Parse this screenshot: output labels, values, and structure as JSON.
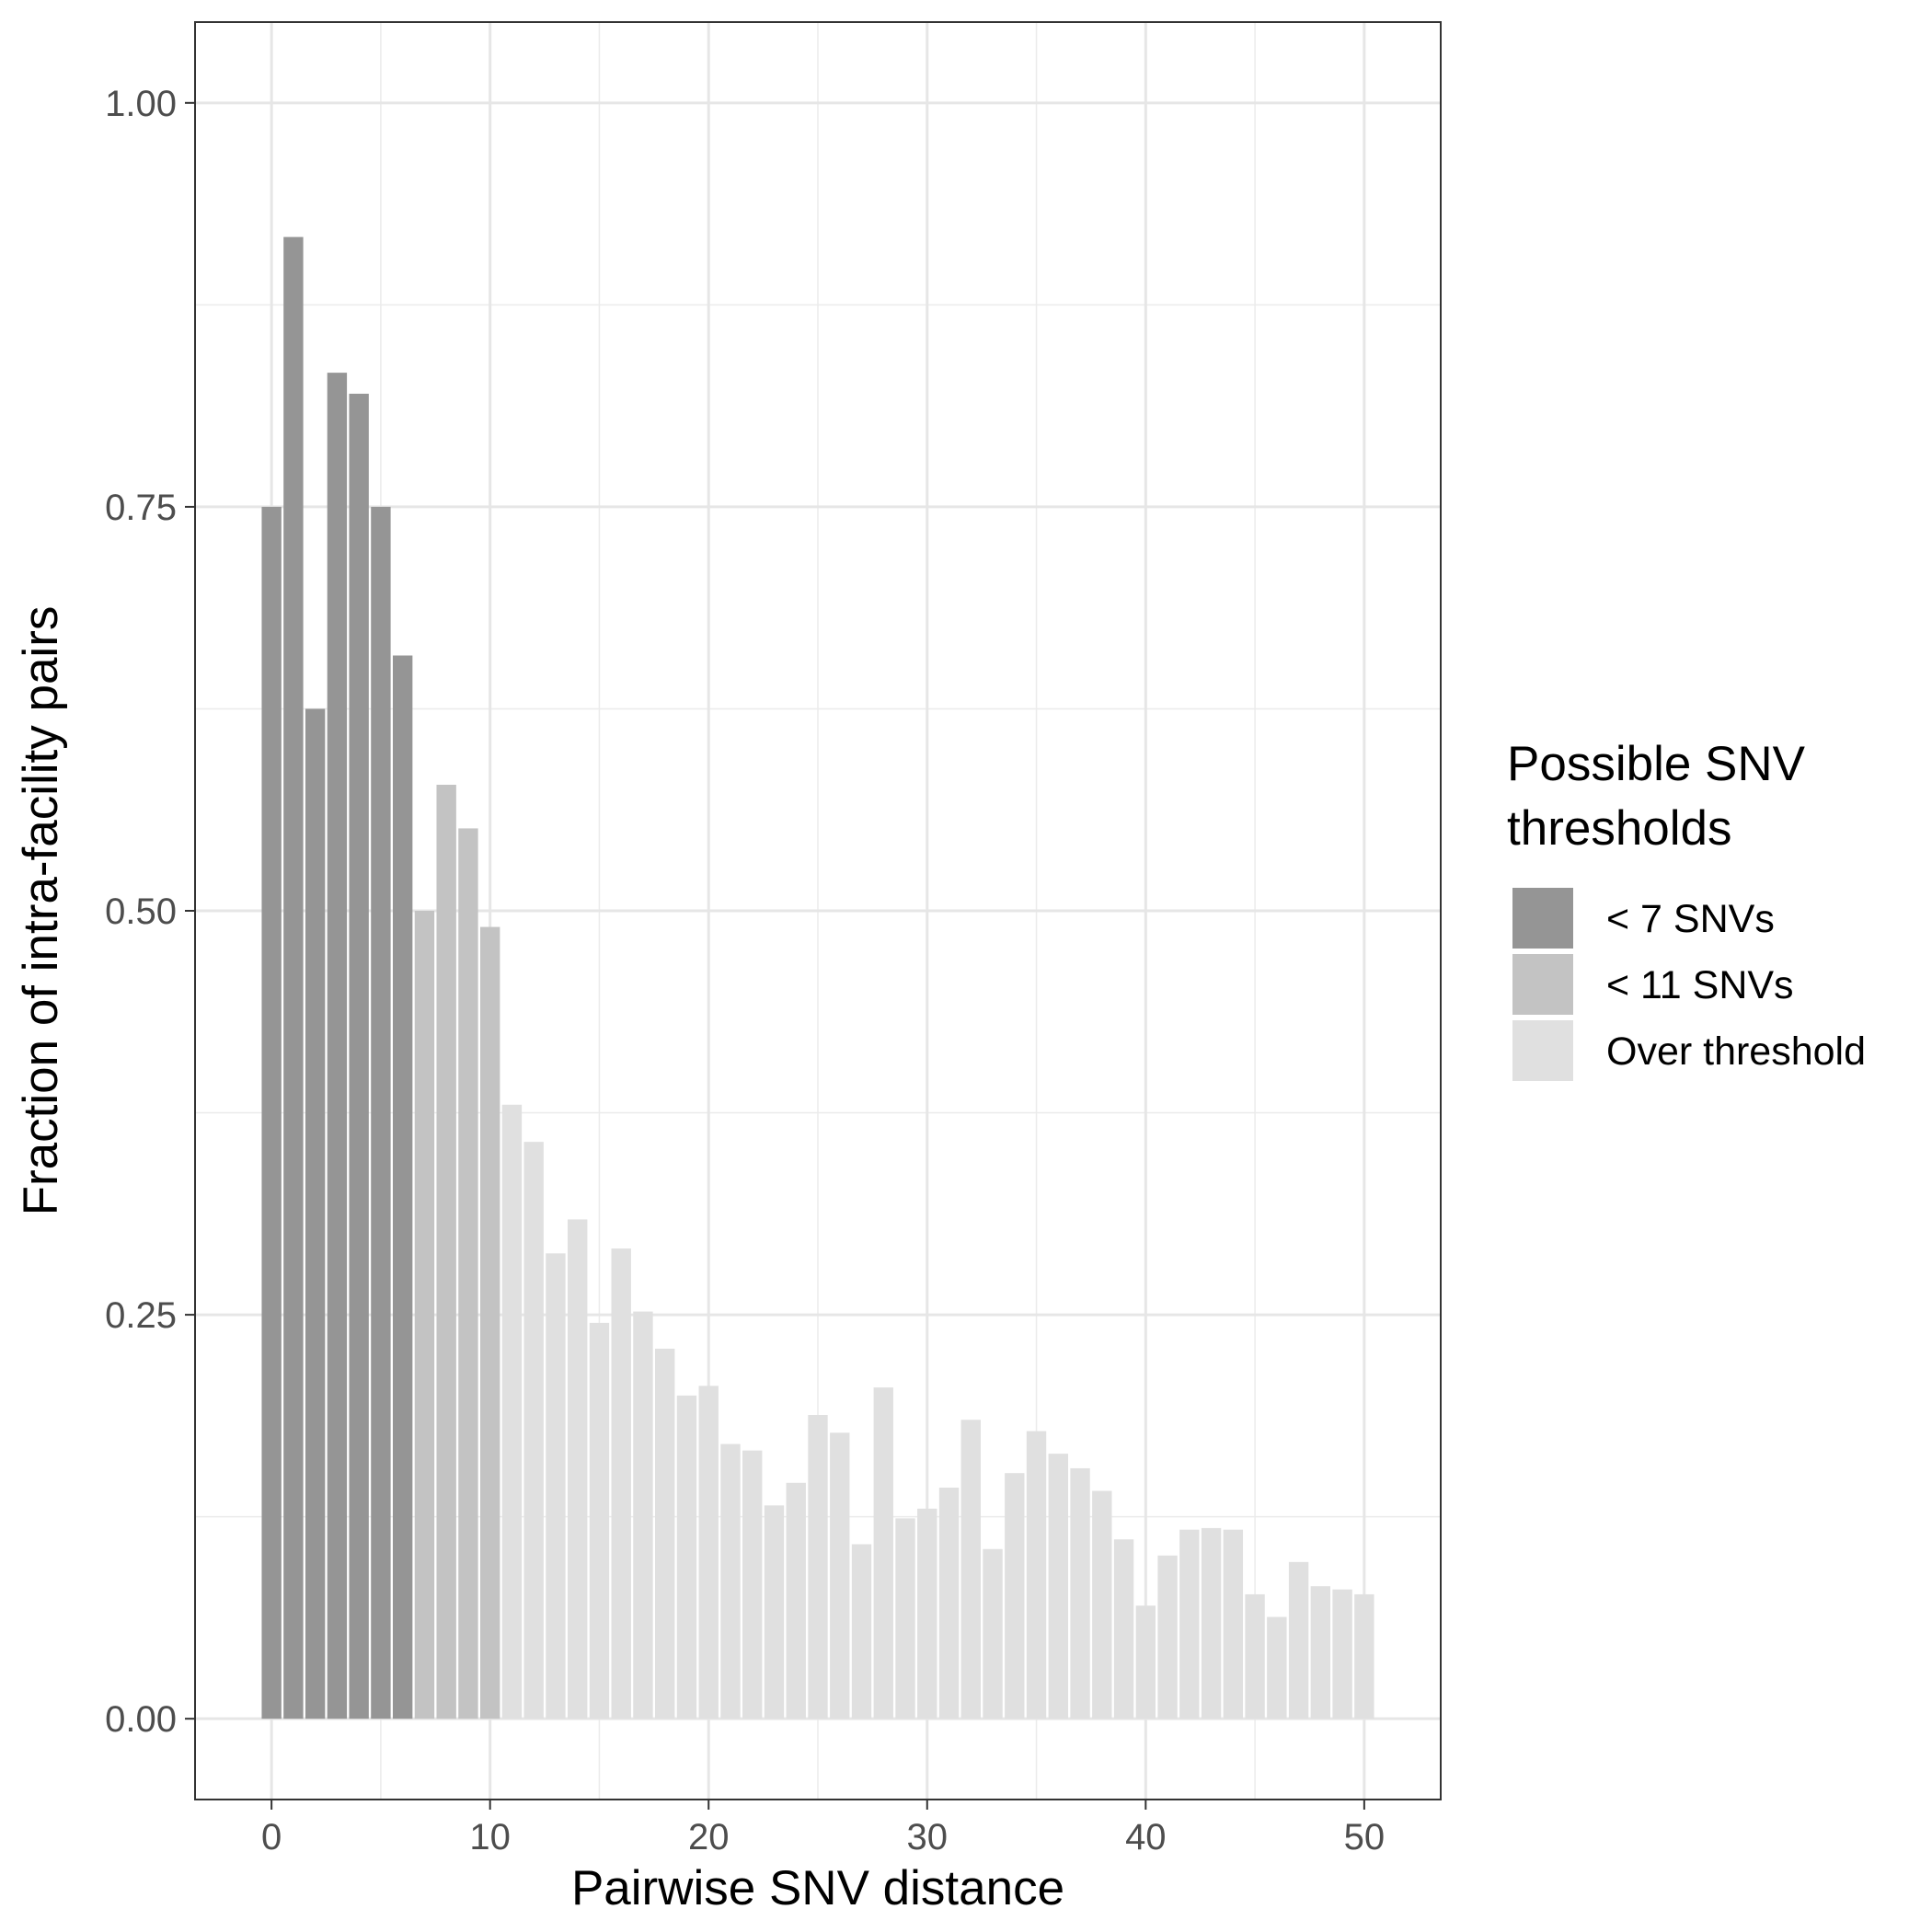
{
  "chart_data": {
    "type": "bar",
    "xlabel": "Pairwise SNV distance",
    "ylabel": "Fraction of intra-facility pairs",
    "xlim": [
      -3.5,
      53.5
    ],
    "ylim": [
      -0.05,
      1.05
    ],
    "x_ticks": [
      0,
      10,
      20,
      30,
      40,
      50
    ],
    "x_tick_labels": [
      "0",
      "10",
      "20",
      "30",
      "40",
      "50"
    ],
    "y_ticks": [
      0,
      0.25,
      0.5,
      0.75,
      1
    ],
    "y_tick_labels": [
      "0.00",
      "0.25",
      "0.50",
      "0.75",
      "1.00"
    ],
    "grid": true,
    "legend": {
      "title_lines": [
        "Possible SNV",
        "thresholds"
      ],
      "position": "right",
      "entries": [
        {
          "label": "< 7 SNVs",
          "color": "#959595"
        },
        {
          "label": "< 11 SNVs",
          "color": "#c3c3c3"
        },
        {
          "label": "Over threshold",
          "color": "#e0e0e0"
        }
      ]
    },
    "x": [
      0,
      1,
      2,
      3,
      4,
      5,
      6,
      7,
      8,
      9,
      10,
      11,
      12,
      13,
      14,
      15,
      16,
      17,
      18,
      19,
      20,
      21,
      22,
      23,
      24,
      25,
      26,
      27,
      28,
      29,
      30,
      31,
      32,
      33,
      34,
      35,
      36,
      37,
      38,
      39,
      40,
      41,
      42,
      43,
      44,
      45,
      46,
      47,
      48,
      49,
      50
    ],
    "values": [
      0.75,
      0.917,
      0.625,
      0.833,
      0.82,
      0.75,
      0.658,
      0.5,
      0.578,
      0.551,
      0.49,
      0.38,
      0.357,
      0.288,
      0.309,
      0.245,
      0.291,
      0.252,
      0.229,
      0.2,
      0.206,
      0.17,
      0.166,
      0.132,
      0.146,
      0.188,
      0.177,
      0.108,
      0.205,
      0.124,
      0.13,
      0.143,
      0.185,
      0.105,
      0.152,
      0.178,
      0.164,
      0.155,
      0.141,
      0.111,
      0.07,
      0.101,
      0.117,
      0.118,
      0.117,
      0.077,
      0.063,
      0.097,
      0.082,
      0.08,
      0.077
    ],
    "series_group": [
      "< 7 SNVs",
      "< 7 SNVs",
      "< 7 SNVs",
      "< 7 SNVs",
      "< 7 SNVs",
      "< 7 SNVs",
      "< 7 SNVs",
      "< 11 SNVs",
      "< 11 SNVs",
      "< 11 SNVs",
      "< 11 SNVs",
      "Over threshold",
      "Over threshold",
      "Over threshold",
      "Over threshold",
      "Over threshold",
      "Over threshold",
      "Over threshold",
      "Over threshold",
      "Over threshold",
      "Over threshold",
      "Over threshold",
      "Over threshold",
      "Over threshold",
      "Over threshold",
      "Over threshold",
      "Over threshold",
      "Over threshold",
      "Over threshold",
      "Over threshold",
      "Over threshold",
      "Over threshold",
      "Over threshold",
      "Over threshold",
      "Over threshold",
      "Over threshold",
      "Over threshold",
      "Over threshold",
      "Over threshold",
      "Over threshold",
      "Over threshold",
      "Over threshold",
      "Over threshold",
      "Over threshold",
      "Over threshold",
      "Over threshold",
      "Over threshold",
      "Over threshold",
      "Over threshold",
      "Over threshold",
      "Over threshold"
    ]
  }
}
